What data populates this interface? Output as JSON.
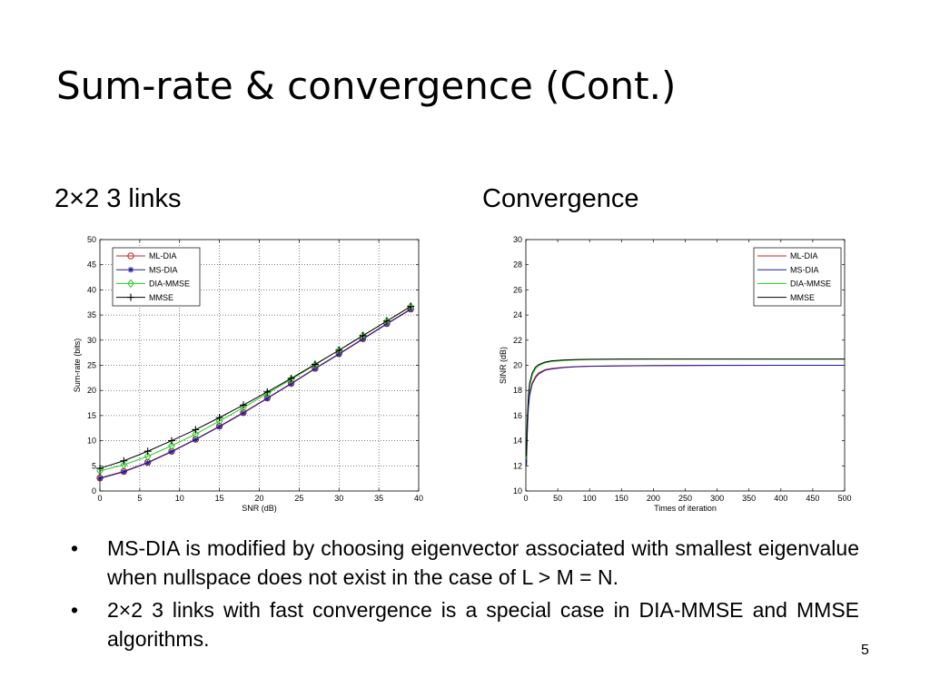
{
  "slide": {
    "title": "Sum-rate & convergence (Cont.)",
    "subtitle_left": "2×2 3 links",
    "subtitle_right": "Convergence",
    "page_number": "5",
    "bullet_marker": "•",
    "bullets": [
      "MS-DIA is modified by choosing eigenvector associated with smallest eigenvalue when nullspace does not exist in the case of L > M = N.",
      "2×2 3 links with fast convergence is a special case in DIA-MMSE and MMSE algorithms."
    ]
  },
  "chart_data": [
    {
      "type": "line",
      "title": "",
      "xlabel": "SNR (dB)",
      "ylabel": "Sum-rate (bits)",
      "xlim": [
        0,
        40
      ],
      "ylim": [
        0,
        50
      ],
      "xticks": [
        0,
        5,
        10,
        15,
        20,
        25,
        30,
        35,
        40
      ],
      "yticks": [
        0,
        5,
        10,
        15,
        20,
        25,
        30,
        35,
        40,
        45,
        50
      ],
      "grid": true,
      "legend_position": "top-left",
      "x": [
        0,
        3,
        6,
        9,
        12,
        15,
        18,
        21,
        24,
        27,
        30,
        33,
        36,
        39
      ],
      "series": [
        {
          "name": "ML-DIA",
          "color": "#cc2222",
          "marker": "circle",
          "values": [
            2.6,
            3.9,
            5.7,
            7.9,
            10.3,
            12.9,
            15.6,
            18.5,
            21.4,
            24.4,
            27.3,
            30.3,
            33.3,
            36.2
          ]
        },
        {
          "name": "MS-DIA",
          "color": "#1a1aa0",
          "marker": "star",
          "values": [
            2.5,
            3.8,
            5.6,
            7.8,
            10.2,
            12.8,
            15.5,
            18.4,
            21.3,
            24.3,
            27.2,
            30.2,
            33.2,
            36.1
          ]
        },
        {
          "name": "DIA-MMSE",
          "color": "#22cc22",
          "marker": "diamond",
          "values": [
            4.0,
            5.2,
            6.9,
            9.0,
            11.3,
            13.9,
            16.6,
            19.4,
            22.2,
            25.1,
            28.0,
            30.9,
            33.8,
            36.7
          ]
        },
        {
          "name": "MMSE",
          "color": "#000000",
          "marker": "plus",
          "values": [
            4.5,
            6.0,
            7.9,
            10.0,
            12.2,
            14.6,
            17.1,
            19.7,
            22.4,
            25.2,
            28.0,
            30.9,
            33.8,
            36.7
          ]
        }
      ]
    },
    {
      "type": "line",
      "title": "",
      "xlabel": "Times of iteration",
      "ylabel": "SINR (dB)",
      "xlim": [
        0,
        500
      ],
      "ylim": [
        10,
        30
      ],
      "xticks": [
        0,
        50,
        100,
        150,
        200,
        250,
        300,
        350,
        400,
        450,
        500
      ],
      "yticks": [
        10,
        12,
        14,
        16,
        18,
        20,
        22,
        24,
        26,
        28,
        30
      ],
      "grid": false,
      "legend_position": "top-right",
      "x": [
        1,
        2,
        4,
        6,
        10,
        15,
        20,
        30,
        40,
        60,
        80,
        100,
        150,
        200,
        300,
        400,
        500
      ],
      "series": [
        {
          "name": "ML-DIA",
          "color": "#cc2222",
          "values": [
            12.2,
            14.5,
            16.8,
            17.8,
            18.6,
            19.1,
            19.4,
            19.65,
            19.75,
            19.85,
            19.9,
            19.93,
            19.96,
            19.98,
            20.0,
            20.0,
            20.0
          ]
        },
        {
          "name": "MS-DIA",
          "color": "#1a1aa0",
          "values": [
            12.0,
            14.3,
            16.6,
            17.6,
            18.5,
            19.0,
            19.3,
            19.6,
            19.7,
            19.82,
            19.88,
            19.92,
            19.95,
            19.97,
            19.99,
            20.0,
            20.0
          ]
        },
        {
          "name": "DIA-MMSE",
          "color": "#22cc22",
          "values": [
            12.5,
            15.0,
            17.3,
            18.3,
            19.2,
            19.7,
            19.95,
            20.2,
            20.3,
            20.38,
            20.42,
            20.45,
            20.48,
            20.5,
            20.5,
            20.5,
            20.5
          ]
        },
        {
          "name": "MMSE",
          "color": "#000000",
          "values": [
            12.8,
            15.3,
            17.6,
            18.6,
            19.4,
            19.85,
            20.05,
            20.25,
            20.35,
            20.42,
            20.46,
            20.48,
            20.5,
            20.5,
            20.5,
            20.5,
            20.5
          ]
        }
      ]
    }
  ]
}
